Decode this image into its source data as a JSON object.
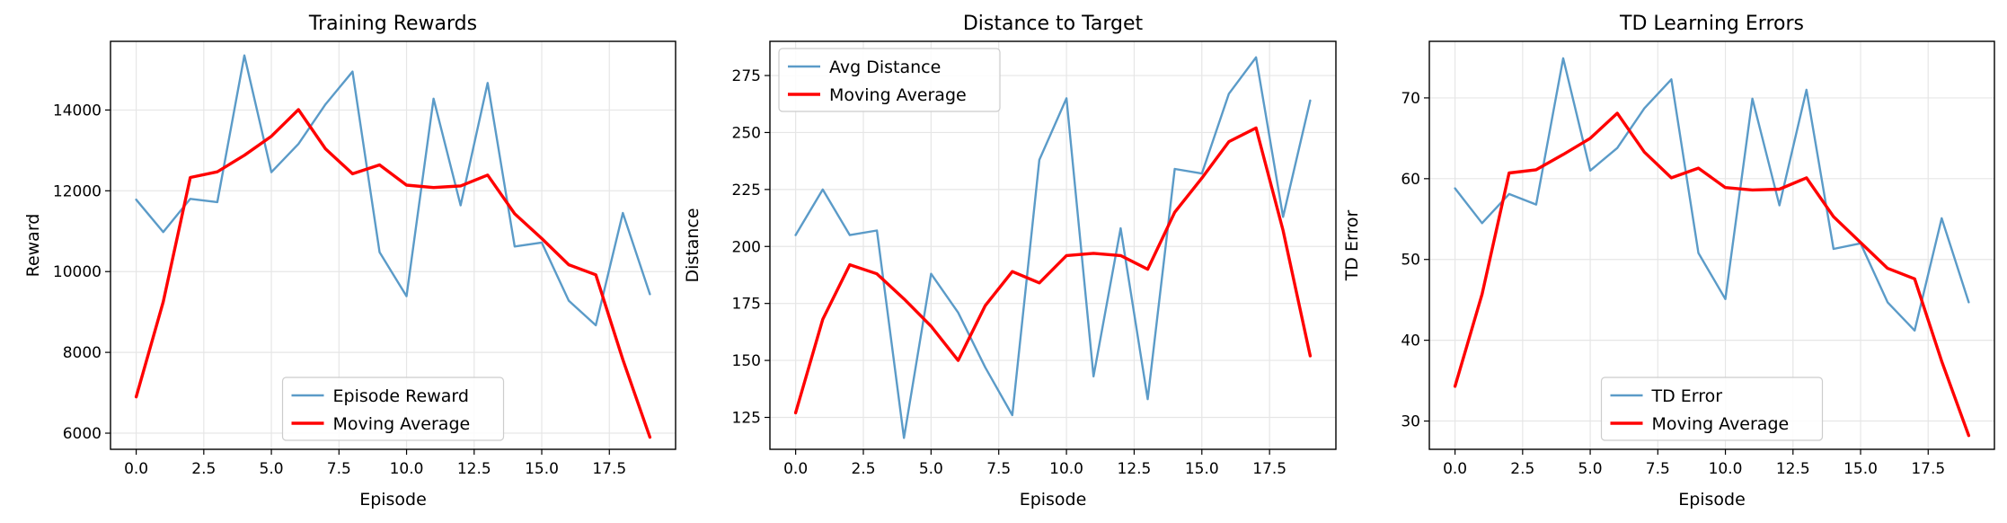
{
  "chart_data": [
    {
      "type": "line",
      "title": "Training Rewards",
      "xlabel": "Episode",
      "ylabel": "Reward",
      "x": [
        0,
        1,
        2,
        3,
        4,
        5,
        6,
        7,
        8,
        9,
        10,
        11,
        12,
        13,
        14,
        15,
        16,
        17,
        18,
        19
      ],
      "xlim": [
        -0.95,
        19.95
      ],
      "ylim": [
        5600,
        15700
      ],
      "xticks": [
        0.0,
        2.5,
        5.0,
        7.5,
        10.0,
        12.5,
        15.0,
        17.5
      ],
      "xtick_labels": [
        "0.0",
        "2.5",
        "5.0",
        "7.5",
        "10.0",
        "12.5",
        "15.0",
        "17.5"
      ],
      "yticks": [
        6000,
        8000,
        10000,
        12000,
        14000
      ],
      "ytick_labels": [
        "6000",
        "8000",
        "10000",
        "12000",
        "14000"
      ],
      "grid": true,
      "legend_position": "lower center",
      "series": [
        {
          "name": "Episode Reward",
          "color": "#5b9bc8",
          "width": 2.4,
          "opacity": 1,
          "values": [
            11780,
            10980,
            11800,
            11720,
            15350,
            12460,
            13160,
            14140,
            14950,
            10480,
            9390,
            14280,
            11640,
            14670,
            10620,
            10720,
            9280,
            8670,
            11450,
            9440
          ]
        },
        {
          "name": "Moving Average",
          "color": "#ff0000",
          "width": 3.4,
          "opacity": 1,
          "values": [
            6900,
            9250,
            12330,
            12470,
            12880,
            13350,
            14010,
            13040,
            12420,
            12640,
            12140,
            12080,
            12120,
            12390,
            11430,
            10820,
            10170,
            9920,
            7820,
            5900
          ]
        }
      ]
    },
    {
      "type": "line",
      "title": "Distance to Target",
      "xlabel": "Episode",
      "ylabel": "Distance",
      "x": [
        0,
        1,
        2,
        3,
        4,
        5,
        6,
        7,
        8,
        9,
        10,
        11,
        12,
        13,
        14,
        15,
        16,
        17,
        18,
        19
      ],
      "xlim": [
        -0.95,
        19.95
      ],
      "ylim": [
        111,
        290
      ],
      "xticks": [
        0.0,
        2.5,
        5.0,
        7.5,
        10.0,
        12.5,
        15.0,
        17.5
      ],
      "xtick_labels": [
        "0.0",
        "2.5",
        "5.0",
        "7.5",
        "10.0",
        "12.5",
        "15.0",
        "17.5"
      ],
      "yticks": [
        125,
        150,
        175,
        200,
        225,
        250,
        275
      ],
      "ytick_labels": [
        "125",
        "150",
        "175",
        "200",
        "225",
        "250",
        "275"
      ],
      "grid": true,
      "legend_position": "upper left",
      "series": [
        {
          "name": "Avg Distance",
          "color": "#5b9bc8",
          "width": 2.4,
          "opacity": 1,
          "values": [
            205,
            225,
            205,
            207,
            116,
            188,
            171,
            147,
            126,
            238,
            265,
            143,
            208,
            133,
            234,
            232,
            267,
            283,
            213,
            264
          ]
        },
        {
          "name": "Moving Average",
          "color": "#ff0000",
          "width": 3.4,
          "opacity": 1,
          "values": [
            127,
            168,
            192,
            188,
            177,
            165,
            150,
            174,
            189,
            184,
            196,
            197,
            196,
            190,
            215,
            230,
            246,
            252,
            207,
            152
          ]
        }
      ]
    },
    {
      "type": "line",
      "title": "TD Learning Errors",
      "xlabel": "Episode",
      "ylabel": "TD Error",
      "x": [
        0,
        1,
        2,
        3,
        4,
        5,
        6,
        7,
        8,
        9,
        10,
        11,
        12,
        13,
        14,
        15,
        16,
        17,
        18,
        19
      ],
      "xlim": [
        -0.95,
        19.95
      ],
      "ylim": [
        26.5,
        77
      ],
      "xticks": [
        0.0,
        2.5,
        5.0,
        7.5,
        10.0,
        12.5,
        15.0,
        17.5
      ],
      "xtick_labels": [
        "0.0",
        "2.5",
        "5.0",
        "7.5",
        "10.0",
        "12.5",
        "15.0",
        "17.5"
      ],
      "yticks": [
        30,
        40,
        50,
        60,
        70
      ],
      "ytick_labels": [
        "30",
        "40",
        "50",
        "60",
        "70"
      ],
      "grid": true,
      "legend_position": "lower center",
      "series": [
        {
          "name": "TD Error",
          "color": "#5b9bc8",
          "width": 2.4,
          "opacity": 1,
          "values": [
            58.8,
            54.5,
            58.1,
            56.8,
            74.9,
            61.0,
            63.8,
            68.7,
            72.3,
            50.8,
            45.1,
            69.9,
            56.7,
            71.0,
            51.3,
            52.0,
            44.7,
            41.2,
            55.1,
            44.7
          ]
        },
        {
          "name": "Moving Average",
          "color": "#ff0000",
          "width": 3.4,
          "opacity": 1,
          "values": [
            34.3,
            45.7,
            60.7,
            61.1,
            63.0,
            65.0,
            68.1,
            63.3,
            60.1,
            61.3,
            58.9,
            58.6,
            58.7,
            60.1,
            55.3,
            52.1,
            48.9,
            47.6,
            37.4,
            28.2
          ]
        }
      ]
    }
  ]
}
